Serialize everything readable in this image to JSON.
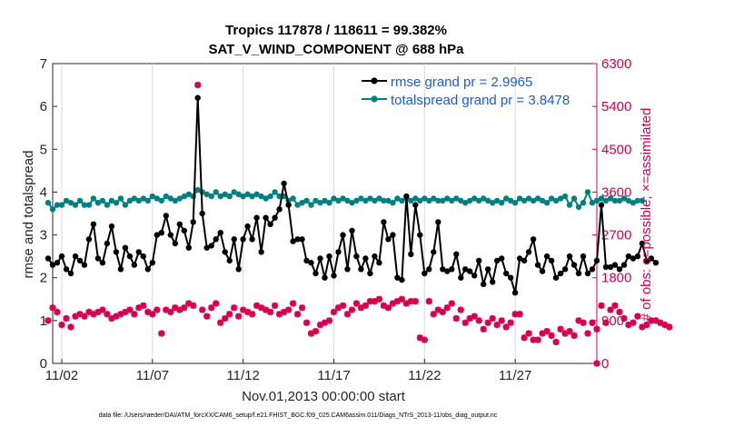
{
  "chart_data": {
    "type": "line",
    "title_line1": "Tropics 117878 / 118611 = 99.382%",
    "title_line2": "SAT_V_WIND_COMPONENT @ 688 hPa",
    "xlabel": "Nov.01,2013 00:00:00 start",
    "ylabel_left": "rmse and totalspread",
    "ylabel_right": "# of obs: o=possible; ×=assimilated",
    "footnote": "data file: /Users/raeder/DAI/ATM_forcXX/CAM6_setup/f.e21.FHIST_BGC.f09_025.CAM6assim.011/Diags_NTrS_2013-11/obs_diag_output.nc",
    "xlim": [
      1.5,
      31.5
    ],
    "ylim_left": [
      0,
      7
    ],
    "ylim_right": [
      0,
      6300
    ],
    "x_ticks": [
      {
        "value": 2,
        "label": "11/02"
      },
      {
        "value": 7,
        "label": "11/07"
      },
      {
        "value": 12,
        "label": "11/12"
      },
      {
        "value": 17,
        "label": "11/17"
      },
      {
        "value": 22,
        "label": "11/22"
      },
      {
        "value": 27,
        "label": "11/27"
      }
    ],
    "y_ticks_left": [
      "0",
      "1",
      "2",
      "3",
      "4",
      "5",
      "6",
      "7"
    ],
    "y_ticks_right": [
      "0",
      "900",
      "1800",
      "2700",
      "3600",
      "4500",
      "5400",
      "6300"
    ],
    "legend": [
      {
        "label": "rmse grand pr = 2.9965",
        "color": "#000000"
      },
      {
        "label": "totalspread grand pr = 3.8478",
        "color": "#008080"
      }
    ],
    "x_start": 1.25,
    "x_step": 0.25,
    "series": [
      {
        "name": "rmse",
        "color": "#000000",
        "values": [
          2.45,
          2.3,
          2.35,
          2.5,
          2.2,
          2.1,
          2.5,
          2.4,
          2.3,
          2.9,
          3.25,
          2.45,
          2.35,
          2.8,
          3.2,
          2.6,
          2.2,
          2.7,
          2.5,
          2.3,
          2.6,
          2.5,
          2.2,
          2.35,
          3.0,
          3.05,
          3.45,
          3.0,
          2.8,
          3.25,
          3.1,
          2.7,
          3.3,
          6.2,
          3.5,
          2.7,
          2.75,
          2.9,
          3.05,
          2.6,
          2.4,
          2.9,
          2.2,
          2.9,
          3.2,
          2.9,
          3.4,
          2.6,
          3.4,
          3.25,
          3.4,
          3.6,
          4.2,
          3.7,
          2.85,
          2.9,
          2.9,
          2.4,
          2.35,
          2.1,
          2.45,
          2.0,
          2.5,
          2.05,
          2.6,
          3.0,
          2.2,
          3.1,
          2.5,
          2.2,
          2.45,
          2.1,
          2.5,
          2.35,
          3.3,
          2.9,
          3.0,
          2.0,
          1.95,
          3.9,
          2.55,
          3.7,
          3.0,
          2.1,
          2.2,
          2.6,
          3.3,
          2.2,
          2.15,
          2.2,
          2.55,
          2.0,
          2.2,
          2.15,
          2.05,
          2.4,
          1.85,
          2.2,
          1.9,
          2.4,
          2.45,
          2.1,
          2.0,
          1.65,
          2.45,
          2.4,
          2.6,
          2.9,
          2.3,
          2.15,
          2.5,
          2.4,
          2.0,
          2.1,
          2.2,
          2.5,
          2.3,
          2.1,
          2.5,
          2.1,
          2.2,
          2.4,
          3.7,
          2.25,
          2.25,
          2.3,
          2.2,
          2.3,
          2.5,
          2.45,
          2.5,
          2.8,
          2.4,
          2.45,
          2.35
        ]
      },
      {
        "name": "totalspread",
        "color": "#008080",
        "values": [
          3.75,
          3.6,
          3.7,
          3.7,
          3.8,
          3.75,
          3.7,
          3.8,
          3.7,
          3.7,
          3.85,
          3.75,
          3.8,
          3.7,
          3.8,
          3.75,
          3.85,
          3.7,
          3.8,
          3.85,
          3.8,
          3.85,
          3.8,
          3.9,
          3.85,
          3.8,
          3.9,
          3.85,
          3.8,
          3.85,
          3.9,
          3.95,
          3.9,
          4.05,
          4.0,
          3.95,
          3.9,
          4.0,
          3.9,
          3.95,
          3.9,
          4.0,
          3.95,
          3.9,
          3.95,
          3.9,
          3.95,
          3.9,
          3.85,
          3.9,
          4.0,
          3.9,
          3.9,
          3.8,
          3.85,
          3.7,
          3.75,
          3.8,
          3.7,
          3.8,
          3.75,
          3.8,
          3.75,
          3.85,
          3.8,
          3.85,
          3.8,
          3.75,
          3.8,
          3.85,
          3.8,
          3.85,
          3.8,
          3.85,
          3.8,
          3.8,
          3.75,
          3.85,
          3.8,
          3.85,
          3.8,
          3.85,
          3.8,
          3.85,
          3.8,
          3.85,
          3.8,
          3.8,
          3.85,
          3.8,
          3.85,
          3.8,
          3.75,
          3.8,
          3.85,
          3.8,
          3.85,
          3.8,
          3.75,
          3.8,
          3.75,
          3.85,
          3.8,
          3.75,
          3.85,
          3.8,
          3.85,
          3.8,
          3.85,
          3.8,
          3.75,
          3.85,
          3.8,
          3.85,
          3.9,
          3.7,
          3.85,
          3.65,
          3.75,
          4.0,
          3.75,
          3.8,
          3.85,
          3.8,
          3.85,
          3.8,
          3.8,
          3.85,
          3.8,
          3.75,
          3.8,
          3.8
        ]
      }
    ],
    "obs_assimilated": {
      "name": "# of obs assimilated",
      "color": "#d6004f",
      "values": [
        900,
        1170,
        1080,
        810,
        945,
        765,
        990,
        1035,
        990,
        1080,
        1035,
        1080,
        1125,
        1035,
        945,
        990,
        1035,
        1080,
        1125,
        1035,
        1170,
        1215,
        1080,
        1035,
        1125,
        630,
        1125,
        1080,
        1170,
        1125,
        1170,
        1260,
        1215,
        5850,
        1125,
        990,
        1170,
        1260,
        855,
        945,
        1035,
        1170,
        990,
        1125,
        1080,
        1035,
        1215,
        1170,
        1125,
        1080,
        1215,
        1035,
        1080,
        1125,
        1260,
        1035,
        1170,
        855,
        630,
        675,
        810,
        855,
        900,
        1080,
        1170,
        1215,
        1035,
        1125,
        1260,
        1170,
        1215,
        1305,
        1305,
        1350,
        1215,
        1170,
        1260,
        1305,
        1350,
        1260,
        1305,
        1305,
        540,
        495,
        1305,
        1035,
        1125,
        1080,
        1170,
        1260,
        945,
        1125,
        855,
        945,
        990,
        900,
        720,
        855,
        945,
        810,
        900,
        765,
        855,
        1035,
        1035,
        540,
        630,
        495,
        495,
        630,
        675,
        585,
        450,
        720,
        630,
        675,
        585,
        900,
        855,
        630,
        855,
        720,
        1215,
        855,
        1125,
        1215,
        1080,
        945,
        810,
        855,
        990,
        765,
        810,
        900,
        900,
        855,
        810,
        765
      ]
    },
    "obs_extra_marker": {
      "x": 31.5,
      "value": 0
    }
  }
}
